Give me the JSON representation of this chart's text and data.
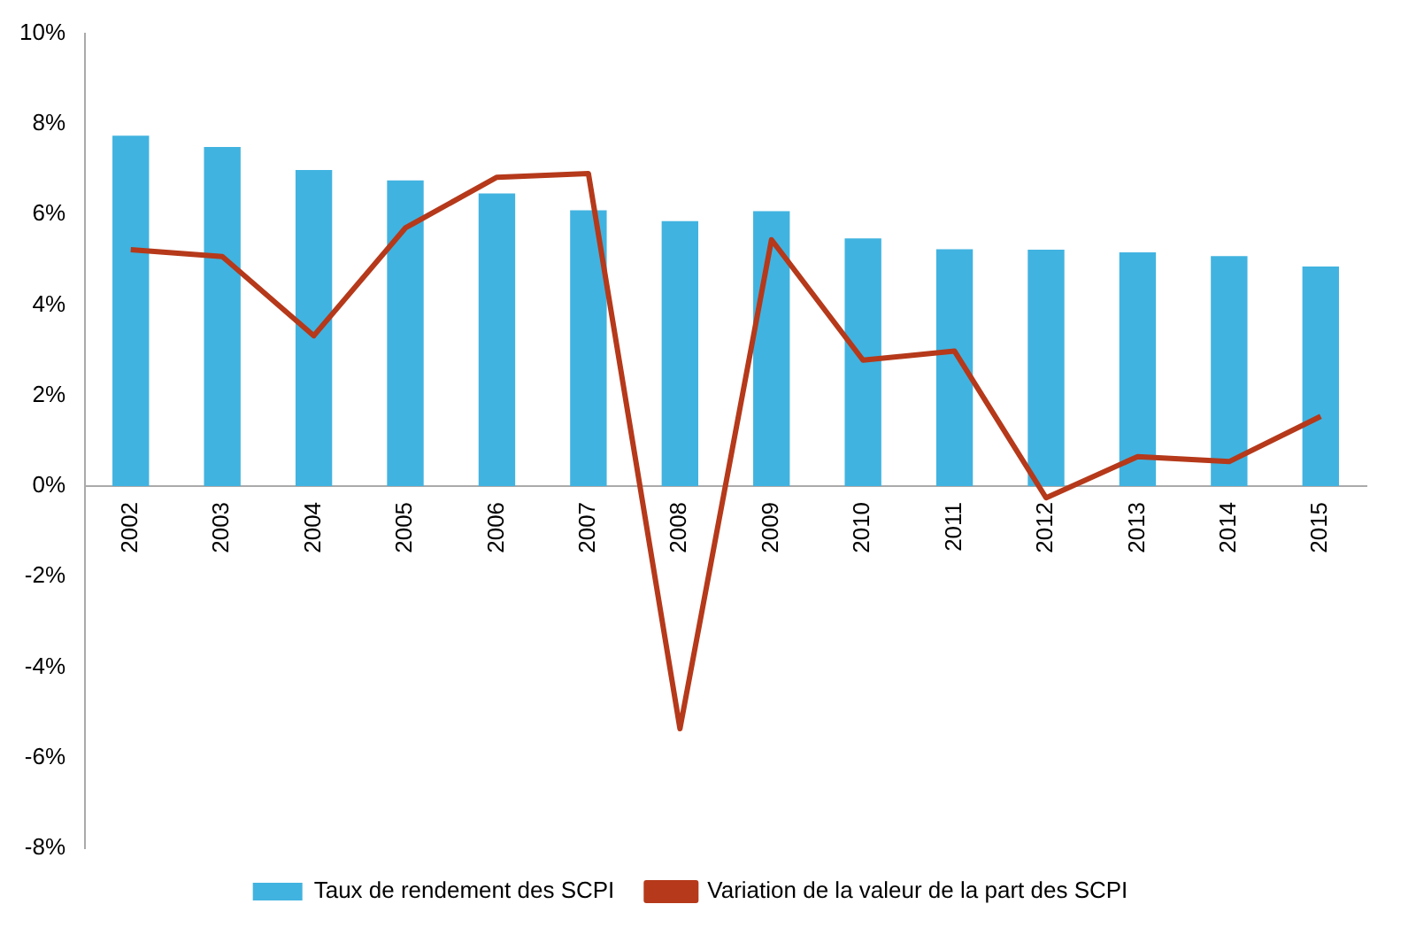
{
  "chart_data": {
    "type": "bar",
    "categories": [
      "2002",
      "2003",
      "2004",
      "2005",
      "2006",
      "2007",
      "2008",
      "2009",
      "2010",
      "2011",
      "2012",
      "2013",
      "2014",
      "2015"
    ],
    "series": [
      {
        "name": "Taux de rendement des SCPI",
        "color": "#41b3e0",
        "values": [
          7.74,
          7.49,
          6.98,
          6.75,
          6.46,
          6.09,
          5.85,
          6.07,
          5.47,
          5.23,
          5.22,
          5.16,
          5.08,
          4.85
        ]
      },
      {
        "name": "Variation de la valeur de la part des SCPI",
        "type": "line",
        "color": "#b5391a",
        "values": [
          5.22,
          5.07,
          3.32,
          5.7,
          6.82,
          6.9,
          -5.36,
          5.44,
          2.78,
          2.98,
          -0.26,
          0.65,
          0.54,
          1.54
        ]
      }
    ],
    "ylim": [
      -8,
      10
    ],
    "yticks": [
      {
        "value": -8,
        "label": "-8%"
      },
      {
        "value": -6,
        "label": "-6%"
      },
      {
        "value": -4,
        "label": "-4%"
      },
      {
        "value": -2,
        "label": "-2%"
      },
      {
        "value": 0,
        "label": "0%"
      },
      {
        "value": 2,
        "label": "2%"
      },
      {
        "value": 4,
        "label": "4%"
      },
      {
        "value": 6,
        "label": "6%"
      },
      {
        "value": 8,
        "label": "8%"
      },
      {
        "value": 10,
        "label": "10%"
      }
    ],
    "grid": false,
    "legend": "bottom",
    "marker": "none",
    "line_style": "solid"
  }
}
